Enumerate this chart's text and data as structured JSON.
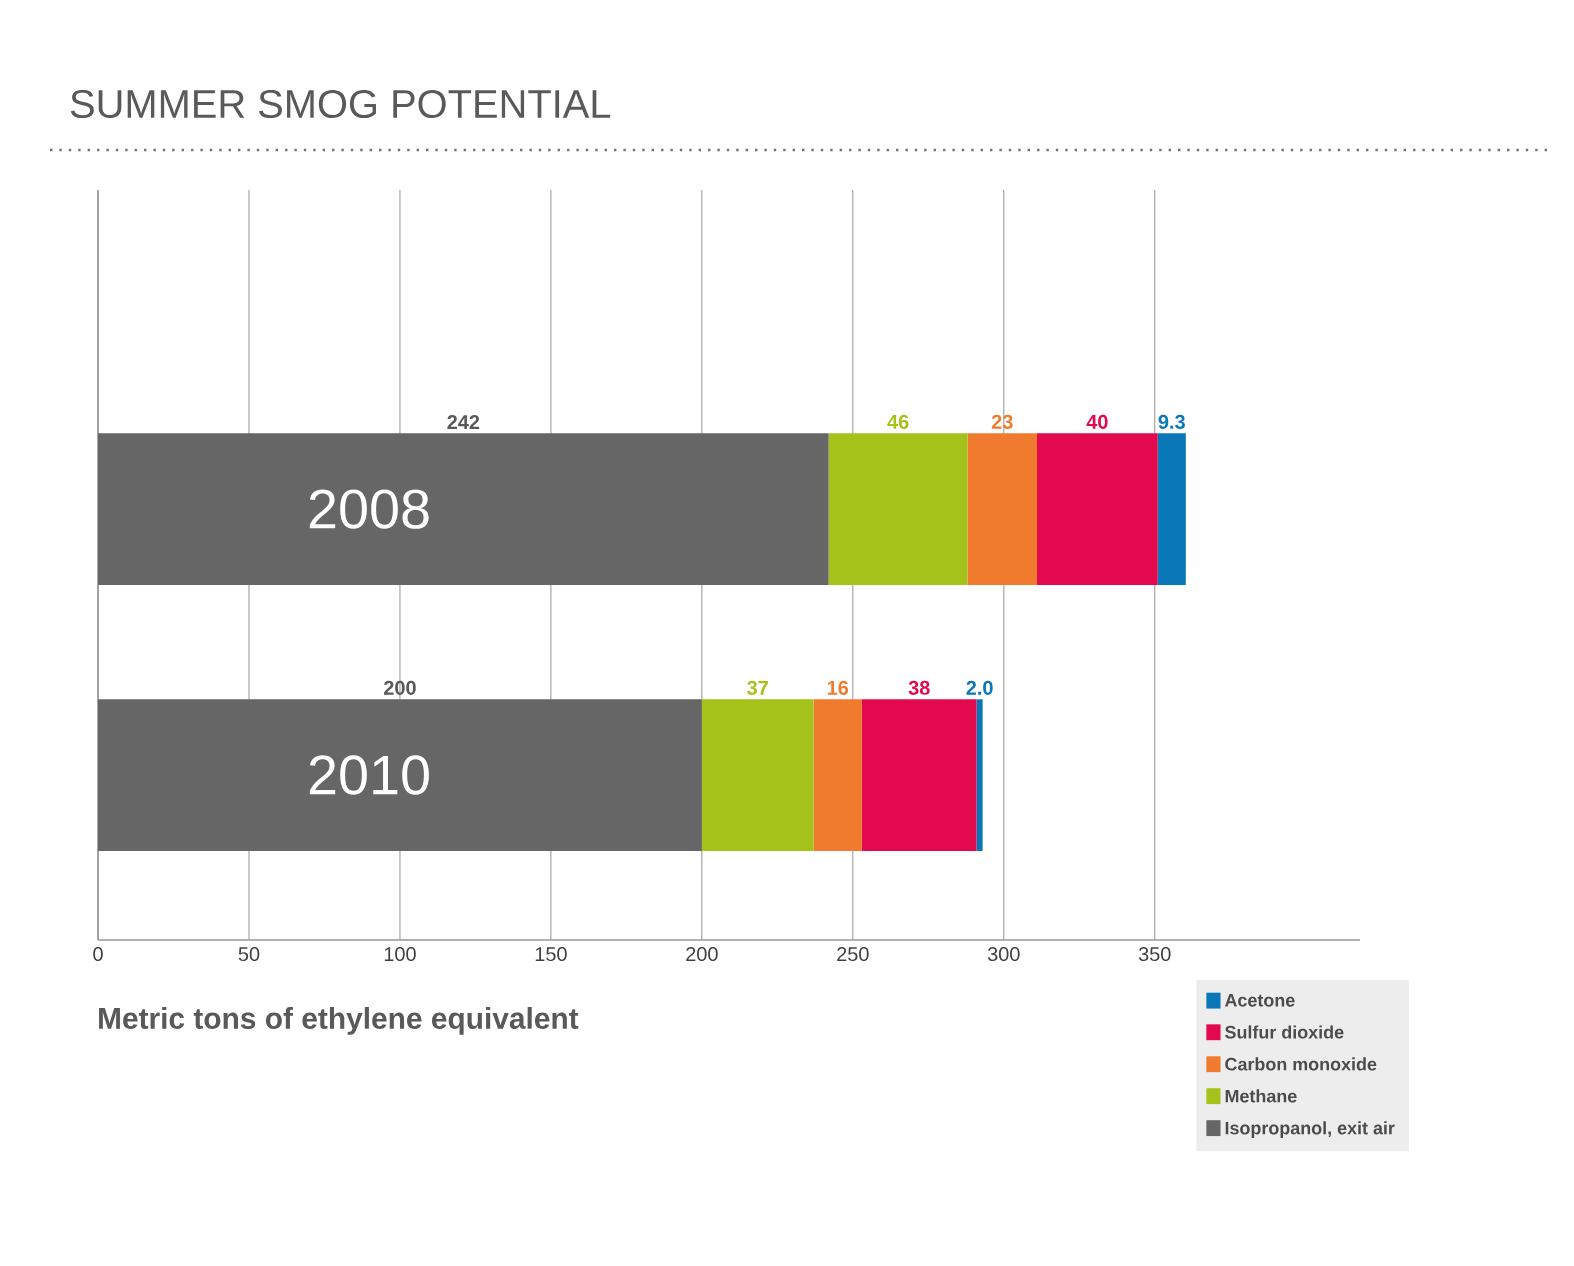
{
  "chart_data": {
    "type": "bar",
    "orientation": "horizontal",
    "stacked": true,
    "title": "SUMMER SMOG POTENTIAL",
    "xlabel": "Metric tons of ethylene equivalent",
    "categories": [
      "2008",
      "2010"
    ],
    "xlim": [
      0,
      418
    ],
    "xticks": [
      0,
      50,
      100,
      150,
      200,
      250,
      300,
      350
    ],
    "grid": "x",
    "legend": "bottom right",
    "series": [
      {
        "name": "Isopropanol, exit air",
        "color": "#666666",
        "values": [
          242,
          200
        ],
        "value_labels": [
          "242",
          "200"
        ]
      },
      {
        "name": "Methane",
        "color": "#a5c21a",
        "values": [
          46,
          37
        ],
        "value_labels": [
          "46",
          "37"
        ]
      },
      {
        "name": "Carbon monoxide",
        "color": "#f07b2f",
        "values": [
          23,
          16
        ],
        "value_labels": [
          "23",
          "16"
        ]
      },
      {
        "name": "Sulfur dioxide",
        "color": "#e3094e",
        "values": [
          40,
          38
        ],
        "value_labels": [
          "40",
          "38"
        ]
      },
      {
        "name": "Acetone",
        "color": "#0a78b8",
        "values": [
          9.3,
          2.0
        ],
        "value_labels": [
          "9.3",
          "2.0"
        ]
      }
    ]
  }
}
